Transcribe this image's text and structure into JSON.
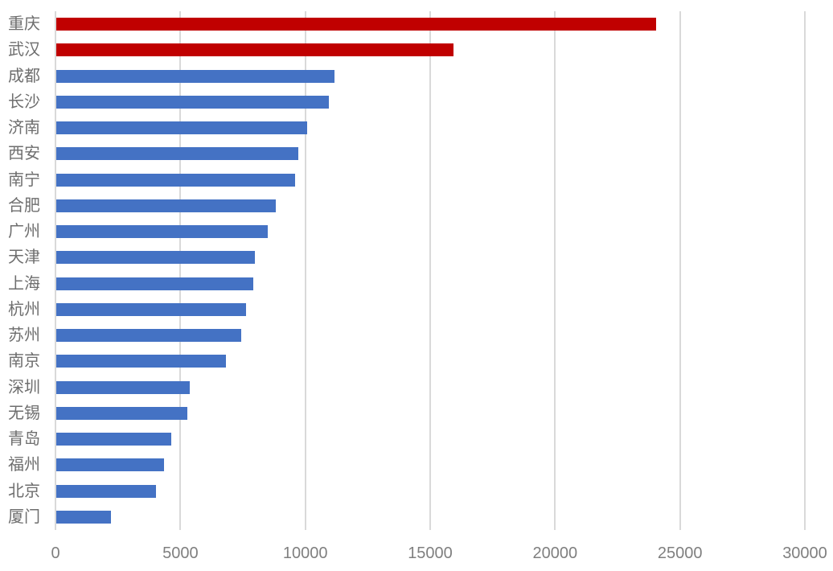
{
  "chart_data": {
    "type": "bar",
    "orientation": "horizontal",
    "title": "",
    "xlabel": "",
    "ylabel": "",
    "categories": [
      "重庆",
      "武汉",
      "成都",
      "长沙",
      "济南",
      "西安",
      "南宁",
      "合肥",
      "广州",
      "天津",
      "上海",
      "杭州",
      "苏州",
      "南京",
      "深圳",
      "无锡",
      "青岛",
      "福州",
      "北京",
      "厦门"
    ],
    "values": [
      24000,
      15900,
      11150,
      10900,
      10050,
      9700,
      9550,
      8800,
      8450,
      7950,
      7900,
      7600,
      7400,
      6800,
      5350,
      5250,
      4600,
      4300,
      4000,
      2200
    ],
    "highlight_indices": [
      0,
      1
    ],
    "xlim": [
      0,
      30000
    ],
    "x_ticks": [
      0,
      5000,
      10000,
      15000,
      20000,
      25000,
      30000
    ],
    "grid": true,
    "legend": "none"
  },
  "colors": {
    "bar": "#4472C4",
    "bar_highlight": "#C00000",
    "gridline": "#D9D9D9",
    "category_label": "#6E6E6E",
    "tick_label": "#7F7F7F",
    "background": "#FFFFFF"
  }
}
